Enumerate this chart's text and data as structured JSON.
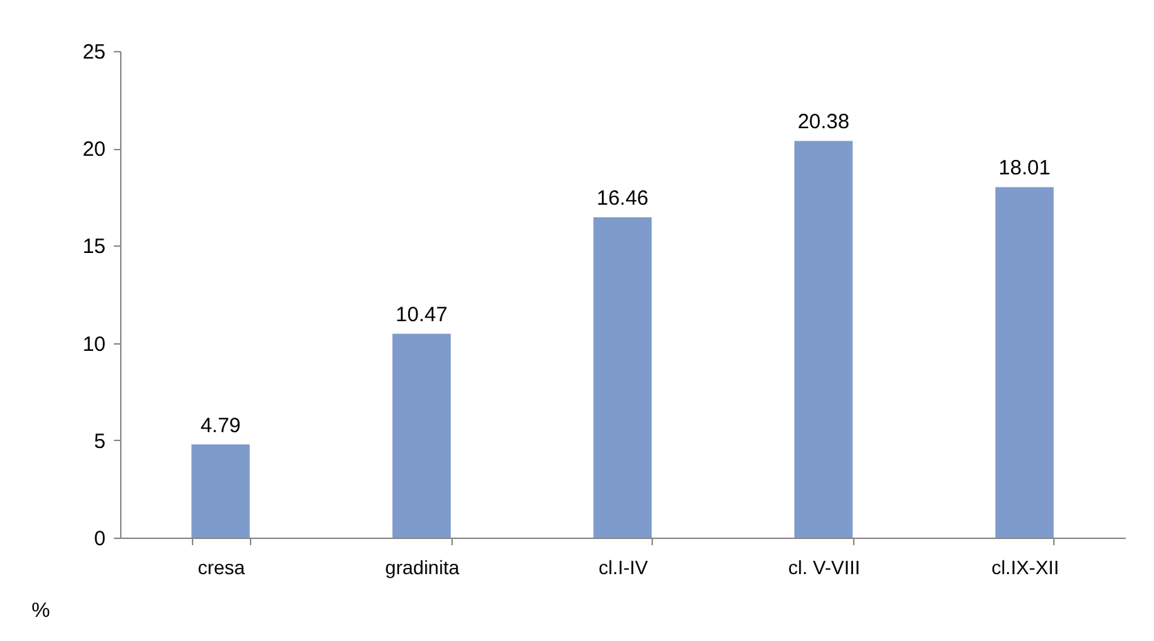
{
  "chart_data": {
    "type": "bar",
    "ylabel": "%",
    "categories": [
      "cresa",
      "gradinita",
      "cl.I-IV",
      "cl. V-VIII",
      "cl.IX-XII"
    ],
    "values": [
      4.79,
      10.47,
      16.46,
      20.38,
      18.01
    ],
    "color": "#7f9bcb",
    "ylim": [
      0,
      25
    ],
    "yticks": [
      0,
      5,
      10,
      15,
      20,
      25
    ],
    "grid": false,
    "data_labels": true
  }
}
